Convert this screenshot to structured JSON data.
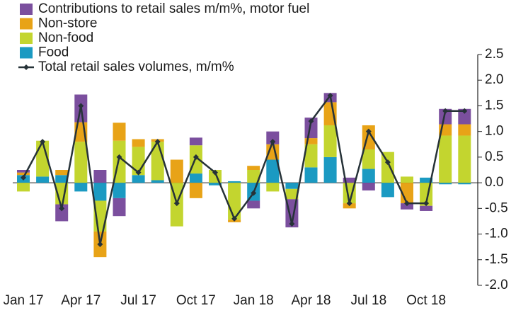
{
  "chart_data": {
    "type": "bar",
    "stacked": true,
    "categories": [
      "Jan 17",
      null,
      null,
      "Apr 17",
      null,
      null,
      "Jul 17",
      null,
      null,
      "Oct 17",
      null,
      null,
      "Jan 18",
      null,
      null,
      "Apr 18",
      null,
      null,
      "Jul 18",
      null,
      null,
      "Oct 18",
      null,
      null
    ],
    "series": [
      {
        "name": "Contributions to retail sales m/m%, motor fuel",
        "type": "bar",
        "color": "#7b4f9e",
        "values": [
          0.05,
          0,
          -0.33,
          0.54,
          0.25,
          -0.35,
          0,
          0,
          0,
          0.15,
          0,
          0,
          -0.15,
          0.25,
          -0.55,
          0.4,
          0.18,
          0.1,
          -0.15,
          0,
          -0.12,
          -0.1,
          0.3,
          0.3
        ]
      },
      {
        "name": "Non-store",
        "type": "bar",
        "color": "#e8a317",
        "values": [
          0.05,
          0,
          0.1,
          0.38,
          -0.5,
          0.35,
          0.15,
          0.05,
          0.45,
          -0.3,
          0,
          -0.05,
          0.08,
          0.3,
          0,
          0.12,
          0.45,
          -0.1,
          0.47,
          0,
          -0.4,
          0,
          0.22,
          0.22
        ]
      },
      {
        "name": "Non-food",
        "type": "bar",
        "color": "#c3d52f",
        "values": [
          -0.17,
          0.7,
          -0.42,
          0.8,
          -0.6,
          0.82,
          0.55,
          0.75,
          -0.85,
          0.55,
          0.25,
          -0.72,
          0.25,
          -0.17,
          -0.2,
          0.45,
          0.62,
          -0.4,
          0.38,
          0.6,
          0.12,
          -0.45,
          0.92,
          0.92
        ]
      },
      {
        "name": "Food",
        "type": "bar",
        "color": "#1b9ac2",
        "values": [
          0.15,
          0.12,
          0.15,
          -0.17,
          -0.35,
          -0.3,
          0.15,
          0.05,
          0,
          0.18,
          -0.05,
          0.03,
          -0.35,
          0.45,
          -0.12,
          0.3,
          0.5,
          0,
          0.27,
          -0.28,
          0,
          0.1,
          -0.03,
          -0.03
        ]
      },
      {
        "name": "Total retail sales volumes, m/m%",
        "type": "line",
        "color": "#263238",
        "values": [
          0.1,
          0.8,
          -0.5,
          1.5,
          -1.2,
          0.5,
          0.2,
          0.8,
          -0.4,
          0.5,
          0.2,
          -0.7,
          -0.2,
          0.8,
          -0.8,
          1.2,
          1.7,
          -0.4,
          1.0,
          0.4,
          -0.4,
          -0.4,
          1.4,
          1.4
        ]
      }
    ],
    "ylim": [
      -2.0,
      2.5
    ],
    "yticks": [
      2.5,
      {
        "value": 2.0,
        "label": "2.0"
      },
      1.5,
      {
        "value": 1.0,
        "label": "1.0"
      },
      0.5,
      {
        "value": 0.0,
        "label": "0.0"
      },
      -0.5,
      {
        "value": -1.0,
        "label": "-1.0"
      },
      -1.5,
      {
        "value": -2.0,
        "label": "-2.0"
      }
    ],
    "yaxis_side": "right",
    "legend": "top-left",
    "grid": false
  }
}
